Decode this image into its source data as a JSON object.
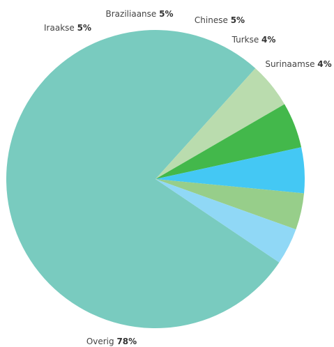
{
  "chart_data": {
    "type": "pie",
    "title": "",
    "start": "clockwise from Overig",
    "slices": [
      {
        "label": "Overig",
        "value": 78,
        "value_label": "78%",
        "color": "#79cbbf"
      },
      {
        "label": "Iraakse",
        "value": 5,
        "value_label": "5%",
        "color": "#badcae"
      },
      {
        "label": "Braziliaanse",
        "value": 5,
        "value_label": "5%",
        "color": "#43b84b"
      },
      {
        "label": "Chinese",
        "value": 5,
        "value_label": "5%",
        "color": "#44c8f4"
      },
      {
        "label": "Turkse",
        "value": 4,
        "value_label": "4%",
        "color": "#97ce8a"
      },
      {
        "label": "Surinaamse",
        "value": 4,
        "value_label": "4%",
        "color": "#90d8f6"
      }
    ]
  }
}
